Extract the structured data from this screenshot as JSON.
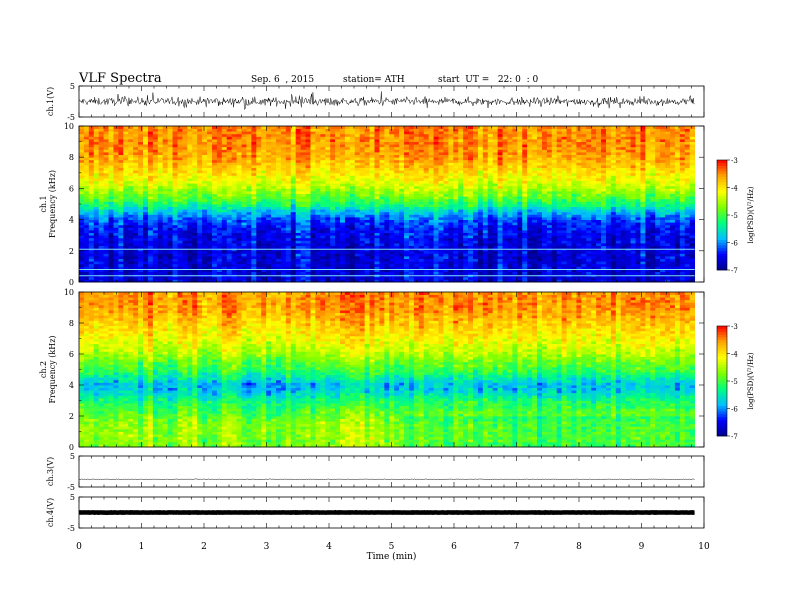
{
  "header": {
    "title": "VLF Spectra",
    "date": "Sep. 6  , 2015",
    "station": "station= ATH",
    "start": "start  UT =   22: 0  : 0"
  },
  "chart_data": [
    {
      "type": "line",
      "panel": "ch1-waveform",
      "ylabel": "ch.1(V)",
      "ylim": [
        -5,
        5
      ],
      "yticks": [
        "5",
        "-5"
      ],
      "xlim": [
        0,
        10
      ],
      "x_range_data": [
        0,
        9.85
      ],
      "baseline_v": 0,
      "amplitude_v": 1.2
    },
    {
      "type": "heatmap",
      "panel": "ch1-spectrogram",
      "ylabel_top": "ch.1",
      "ylabel": "Frequency  (kHz)",
      "ylim": [
        0,
        10
      ],
      "yticks": [
        "0",
        "2",
        "4",
        "6",
        "8",
        "10"
      ],
      "xlim": [
        0,
        10
      ],
      "x_range_data": [
        0,
        9.85
      ],
      "profile": {
        "freq_khz": [
          0,
          0.5,
          1,
          2,
          3,
          3.5,
          4,
          4.5,
          5,
          5.5,
          6,
          6.5,
          7,
          8,
          9,
          10
        ],
        "logpsd": [
          -6.6,
          -6.6,
          -6.6,
          -6.6,
          -6.5,
          -6.4,
          -6.2,
          -5.8,
          -5.2,
          -4.8,
          -4.5,
          -4.2,
          -4.0,
          -3.6,
          -3.5,
          -3.5
        ]
      },
      "tones_khz": [
        0.4,
        0.8,
        2.1
      ],
      "colorbar": {
        "label": "log(PSD)(V²/Hz)",
        "range": [
          -7,
          -3
        ],
        "ticks": [
          "-3",
          "-4",
          "-5",
          "-6",
          "-7"
        ]
      }
    },
    {
      "type": "heatmap",
      "panel": "ch2-spectrogram",
      "ylabel_top": "ch.2",
      "ylabel": "Frequency  (kHz)",
      "ylim": [
        0,
        10
      ],
      "yticks": [
        "0",
        "2",
        "4",
        "6",
        "8",
        "10"
      ],
      "xlim": [
        0,
        10
      ],
      "x_range_data": [
        0,
        9.85
      ],
      "change_time_min": 5.2,
      "profile": {
        "freq_khz": [
          0,
          0.5,
          1,
          1.5,
          2,
          2.5,
          3,
          3.5,
          4,
          4.5,
          5,
          5.5,
          6,
          7,
          8,
          9,
          10
        ],
        "logpsd": [
          -4.7,
          -4.6,
          -4.6,
          -4.6,
          -4.8,
          -5.0,
          -5.2,
          -5.6,
          -5.8,
          -5.4,
          -5.0,
          -4.8,
          -4.5,
          -4.1,
          -3.8,
          -3.5,
          -3.5
        ]
      },
      "colorbar": {
        "label": "log(PSD)(V²/Hz)",
        "range": [
          -7,
          -3
        ],
        "ticks": [
          "-3",
          "-4",
          "-5",
          "-6",
          "-7"
        ]
      }
    },
    {
      "type": "line",
      "panel": "ch3-waveform",
      "ylabel": "ch.3(V)",
      "ylim": [
        -5,
        5
      ],
      "yticks": [
        "5",
        "-5"
      ],
      "xlim": [
        0,
        10
      ],
      "x_range_data": [
        0,
        9.85
      ],
      "baseline_v": -2.5,
      "amplitude_v": 0.1
    },
    {
      "type": "line",
      "panel": "ch4-waveform",
      "ylabel": "ch.4(V)",
      "ylim": [
        -5,
        5
      ],
      "yticks": [
        "5",
        "-5"
      ],
      "xlim": [
        0,
        10
      ],
      "x_range_data": [
        0,
        9.85
      ],
      "baseline_v": 0,
      "amplitude_v": 0.05
    }
  ],
  "x_axis": {
    "label": "Time  (min)",
    "ticks": [
      "0",
      "1",
      "2",
      "3",
      "4",
      "5",
      "6",
      "7",
      "8",
      "9",
      "10"
    ]
  },
  "colors": {
    "colormap": [
      "#00008b",
      "#0000ff",
      "#00bfff",
      "#00ff7f",
      "#7fff00",
      "#ffff00",
      "#ffa500",
      "#ff0000"
    ]
  }
}
